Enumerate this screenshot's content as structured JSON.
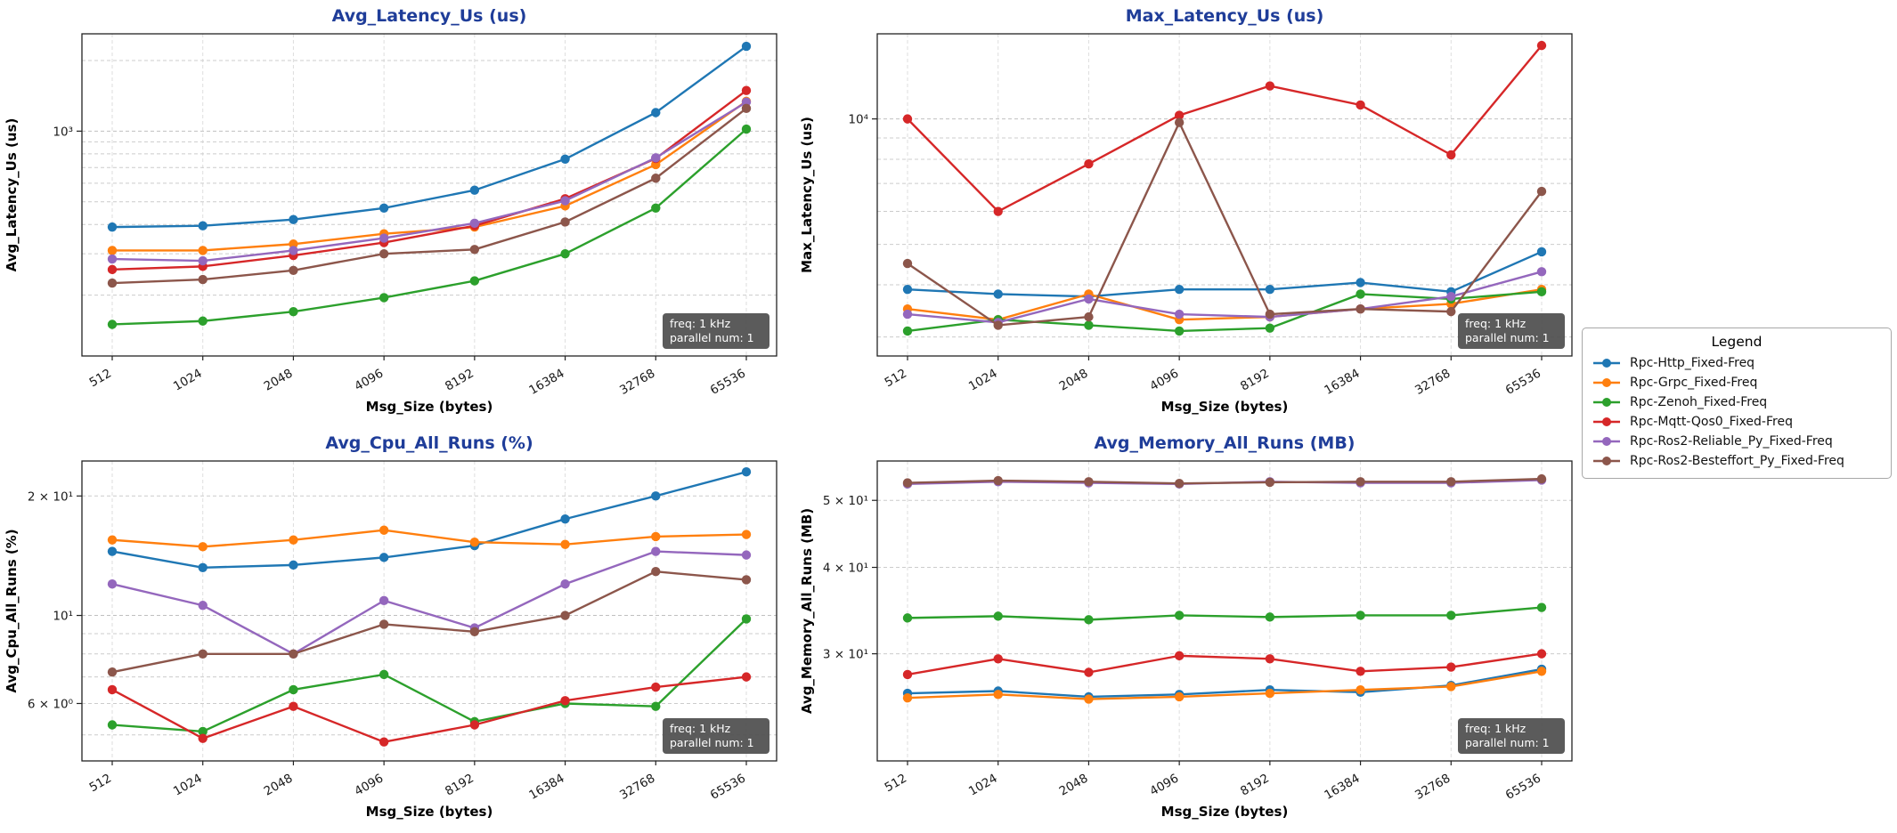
{
  "figure": {
    "background": "#ffffff",
    "title_color": "#1f3d99"
  },
  "legend": {
    "title": "Legend",
    "entries": [
      {
        "label": "Rpc-Http_Fixed-Freq",
        "color": "#1f77b4"
      },
      {
        "label": "Rpc-Grpc_Fixed-Freq",
        "color": "#ff7f0e"
      },
      {
        "label": "Rpc-Zenoh_Fixed-Freq",
        "color": "#2ca02c"
      },
      {
        "label": "Rpc-Mqtt-Qos0_Fixed-Freq",
        "color": "#d62728"
      },
      {
        "label": "Rpc-Ros2-Reliable_Py_Fixed-Freq",
        "color": "#9467bd"
      },
      {
        "label": "Rpc-Ros2-Besteffort_Py_Fixed-Freq",
        "color": "#8c564b"
      }
    ]
  },
  "chart_data": [
    {
      "type": "line",
      "title": "Avg_Latency_Us  (us)",
      "xlabel": "Msg_Size (bytes)",
      "ylabel": "Avg_Latency_Us (us)",
      "yscale": "log",
      "ylim": [
        110,
        2600
      ],
      "yticks": [
        {
          "value": 1000,
          "label": "10³"
        }
      ],
      "grid": true,
      "categories": [
        "512",
        "1024",
        "2048",
        "4096",
        "8192",
        "16384",
        "32768",
        "65536"
      ],
      "annotation": [
        "freq: 1 kHz",
        "parallel num: 1"
      ],
      "series": [
        {
          "name": "Rpc-Http_Fixed-Freq",
          "color": "#1f77b4",
          "values": [
            390,
            395,
            420,
            470,
            560,
            760,
            1200,
            2300
          ]
        },
        {
          "name": "Rpc-Grpc_Fixed-Freq",
          "color": "#ff7f0e",
          "values": [
            310,
            310,
            330,
            365,
            390,
            480,
            720,
            1340
          ]
        },
        {
          "name": "Rpc-Zenoh_Fixed-Freq",
          "color": "#2ca02c",
          "values": [
            150,
            155,
            170,
            195,
            230,
            300,
            470,
            1020
          ]
        },
        {
          "name": "Rpc-Mqtt-Qos0_Fixed-Freq",
          "color": "#d62728",
          "values": [
            257,
            265,
            295,
            335,
            395,
            515,
            765,
            1490
          ]
        },
        {
          "name": "Rpc-Ros2-Reliable_Py_Fixed-Freq",
          "color": "#9467bd",
          "values": [
            285,
            280,
            310,
            350,
            405,
            505,
            770,
            1330
          ]
        },
        {
          "name": "Rpc-Ros2-Besteffort_Py_Fixed-Freq",
          "color": "#8c564b",
          "values": [
            225,
            233,
            255,
            300,
            313,
            410,
            630,
            1250
          ]
        }
      ]
    },
    {
      "type": "line",
      "title": "Max_Latency_Us  (us)",
      "xlabel": "Msg_Size (bytes)",
      "ylabel": "Max_Latency_Us (us)",
      "yscale": "log",
      "ylim": [
        2700,
        16000
      ],
      "yticks": [
        {
          "value": 10000,
          "label": "10⁴"
        }
      ],
      "grid": true,
      "categories": [
        "512",
        "1024",
        "2048",
        "4096",
        "8192",
        "16384",
        "32768",
        "65536"
      ],
      "annotation": [
        "freq: 1 kHz",
        "parallel num: 1"
      ],
      "series": [
        {
          "name": "Rpc-Http_Fixed-Freq",
          "color": "#1f77b4",
          "values": [
            3900,
            3800,
            3750,
            3900,
            3900,
            4050,
            3850,
            4800
          ]
        },
        {
          "name": "Rpc-Grpc_Fixed-Freq",
          "color": "#ff7f0e",
          "values": [
            3500,
            3300,
            3800,
            3300,
            3350,
            3500,
            3600,
            3900
          ]
        },
        {
          "name": "Rpc-Zenoh_Fixed-Freq",
          "color": "#2ca02c",
          "values": [
            3100,
            3300,
            3200,
            3100,
            3150,
            3800,
            3700,
            3850
          ]
        },
        {
          "name": "Rpc-Mqtt-Qos0_Fixed-Freq",
          "color": "#d62728",
          "values": [
            10000,
            6000,
            7800,
            10200,
            12000,
            10800,
            8200,
            15000
          ]
        },
        {
          "name": "Rpc-Ros2-Reliable_Py_Fixed-Freq",
          "color": "#9467bd",
          "values": [
            3400,
            3250,
            3700,
            3400,
            3350,
            3500,
            3750,
            4300
          ]
        },
        {
          "name": "Rpc-Ros2-Besteffort_Py_Fixed-Freq",
          "color": "#8c564b",
          "values": [
            4500,
            3200,
            3350,
            9800,
            3400,
            3500,
            3450,
            6700
          ]
        }
      ]
    },
    {
      "type": "line",
      "title": "Avg_Cpu_All_Runs  (%)",
      "xlabel": "Msg_Size (bytes)",
      "ylabel": "Avg_Cpu_All_Runs (%)",
      "yscale": "log",
      "ylim": [
        4.3,
        24.5
      ],
      "yticks": [
        {
          "value": 20,
          "label": "2 × 10¹"
        },
        {
          "value": 10,
          "label": "10¹"
        },
        {
          "value": 6,
          "label": "6 × 10⁰"
        }
      ],
      "grid": true,
      "categories": [
        "512",
        "1024",
        "2048",
        "4096",
        "8192",
        "16384",
        "32768",
        "65536"
      ],
      "annotation": [
        "freq: 1 kHz",
        "parallel num: 1"
      ],
      "series": [
        {
          "name": "Rpc-Http_Fixed-Freq",
          "color": "#1f77b4",
          "values": [
            14.5,
            13.2,
            13.4,
            14.0,
            15.0,
            17.5,
            20.0,
            23.0
          ]
        },
        {
          "name": "Rpc-Grpc_Fixed-Freq",
          "color": "#ff7f0e",
          "values": [
            15.5,
            14.9,
            15.5,
            16.4,
            15.3,
            15.1,
            15.8,
            16.0
          ]
        },
        {
          "name": "Rpc-Zenoh_Fixed-Freq",
          "color": "#2ca02c",
          "values": [
            5.3,
            5.1,
            6.5,
            7.1,
            5.4,
            6.0,
            5.9,
            9.8
          ]
        },
        {
          "name": "Rpc-Mqtt-Qos0_Fixed-Freq",
          "color": "#d62728",
          "values": [
            6.5,
            4.9,
            5.9,
            4.8,
            5.3,
            6.1,
            6.6,
            7.0
          ]
        },
        {
          "name": "Rpc-Ros2-Reliable_Py_Fixed-Freq",
          "color": "#9467bd",
          "values": [
            12.0,
            10.6,
            8.0,
            10.9,
            9.3,
            12.0,
            14.5,
            14.2
          ]
        },
        {
          "name": "Rpc-Ros2-Besteffort_Py_Fixed-Freq",
          "color": "#8c564b",
          "values": [
            7.2,
            8.0,
            8.0,
            9.5,
            9.1,
            10.0,
            12.9,
            12.3
          ]
        }
      ]
    },
    {
      "type": "line",
      "title": "Avg_Memory_All_Runs  (MB)",
      "xlabel": "Msg_Size (bytes)",
      "ylabel": "Avg_Memory_All_Runs (MB)",
      "yscale": "log",
      "ylim": [
        21,
        57
      ],
      "yticks": [
        {
          "value": 50,
          "label": "5 × 10¹"
        },
        {
          "value": 40,
          "label": "4 × 10¹"
        },
        {
          "value": 30,
          "label": "3 × 10¹"
        }
      ],
      "grid": true,
      "categories": [
        "512",
        "1024",
        "2048",
        "4096",
        "8192",
        "16384",
        "32768",
        "65536"
      ],
      "annotation": [
        "freq: 1 kHz",
        "parallel num: 1"
      ],
      "series": [
        {
          "name": "Rpc-Http_Fixed-Freq",
          "color": "#1f77b4",
          "values": [
            26.3,
            26.5,
            26.0,
            26.2,
            26.6,
            26.4,
            27.0,
            28.5
          ]
        },
        {
          "name": "Rpc-Grpc_Fixed-Freq",
          "color": "#ff7f0e",
          "values": [
            25.9,
            26.2,
            25.8,
            26.0,
            26.3,
            26.6,
            26.9,
            28.3
          ]
        },
        {
          "name": "Rpc-Zenoh_Fixed-Freq",
          "color": "#2ca02c",
          "values": [
            33.8,
            34.0,
            33.6,
            34.1,
            33.9,
            34.1,
            34.1,
            35.0
          ]
        },
        {
          "name": "Rpc-Mqtt-Qos0_Fixed-Freq",
          "color": "#d62728",
          "values": [
            28.0,
            29.5,
            28.2,
            29.8,
            29.5,
            28.3,
            28.7,
            30.0
          ]
        },
        {
          "name": "Rpc-Ros2-Reliable_Py_Fixed-Freq",
          "color": "#9467bd",
          "values": [
            52.8,
            53.2,
            53.0,
            52.8,
            53.2,
            53.0,
            53.0,
            53.5
          ]
        },
        {
          "name": "Rpc-Ros2-Besteffort_Py_Fixed-Freq",
          "color": "#8c564b",
          "values": [
            53.0,
            53.4,
            53.2,
            52.9,
            53.1,
            53.2,
            53.2,
            53.7
          ]
        }
      ]
    }
  ]
}
